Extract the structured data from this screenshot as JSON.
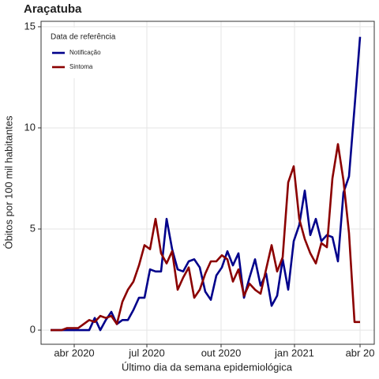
{
  "chart_data": {
    "type": "line",
    "title": "Araçatuba",
    "xlabel": "Último dia da semana epidemiológica",
    "ylabel": "Óbitos por 100 mil habitantes",
    "legend_title": "Data de referência",
    "legend": "top-left",
    "grid": true,
    "x": [
      0,
      1,
      2,
      3,
      4,
      5,
      6,
      7,
      8,
      9,
      10,
      11,
      12,
      13,
      14,
      15,
      16,
      17,
      18,
      19,
      20,
      21,
      22,
      23,
      24,
      25,
      26,
      27,
      28,
      29,
      30,
      31,
      32,
      33,
      34,
      35,
      36,
      37,
      38,
      39,
      40,
      41,
      42,
      43,
      44,
      45,
      46,
      47,
      48,
      49,
      50,
      51,
      52,
      53,
      54,
      55,
      56
    ],
    "series": [
      {
        "name": "Notificação",
        "color": "#00008b",
        "values": [
          0,
          0,
          0,
          0,
          0,
          0,
          0,
          0,
          0.6,
          0,
          0.5,
          0.9,
          0.3,
          0.5,
          0.5,
          1,
          1.6,
          1.6,
          3,
          2.9,
          2.9,
          5.5,
          4,
          3,
          2.9,
          3.4,
          3.5,
          3.1,
          1.9,
          1.5,
          2.7,
          3.1,
          3.9,
          3.2,
          3.8,
          1.6,
          2.6,
          3.5,
          2.2,
          2.8,
          1.2,
          1.7,
          3.5,
          2,
          4.4,
          5.2,
          6.9,
          4.7,
          5.5,
          4.4,
          4.7,
          4.6,
          3.4,
          6.8,
          7.6,
          11,
          14.5
        ]
      },
      {
        "name": "Sintoma",
        "color": "#8b0000",
        "values": [
          0,
          0,
          0,
          0.1,
          0.1,
          0.1,
          0.3,
          0.5,
          0.4,
          0.7,
          0.6,
          0.7,
          0.3,
          1.4,
          2,
          2.4,
          3.2,
          4.2,
          4,
          5.5,
          3.8,
          3.3,
          3.9,
          2,
          2.6,
          3.1,
          1.6,
          2,
          2.8,
          3.4,
          3.4,
          3.7,
          3.5,
          2.4,
          3,
          1.7,
          2.3,
          2,
          1.8,
          3,
          4.2,
          2.9,
          3.6,
          7.3,
          8.1,
          5.5,
          4.5,
          3.8,
          3.3,
          4.3,
          4.1,
          7.5,
          9.2,
          7.4,
          4.8,
          0.4,
          0.4
        ]
      }
    ],
    "xlim": [
      -1.71,
      58.57
    ],
    "xticks": [
      {
        "value": 4.29,
        "label": "abr 2020"
      },
      {
        "value": 17.43,
        "label": "jul 2020"
      },
      {
        "value": 30.86,
        "label": "out 2020"
      },
      {
        "value": 44.14,
        "label": "jan 2021"
      },
      {
        "value": 56,
        "label": "abr 20"
      }
    ],
    "ylim": [
      -0.7,
      15.27
    ],
    "yticks": [
      0,
      5,
      10,
      15
    ]
  }
}
